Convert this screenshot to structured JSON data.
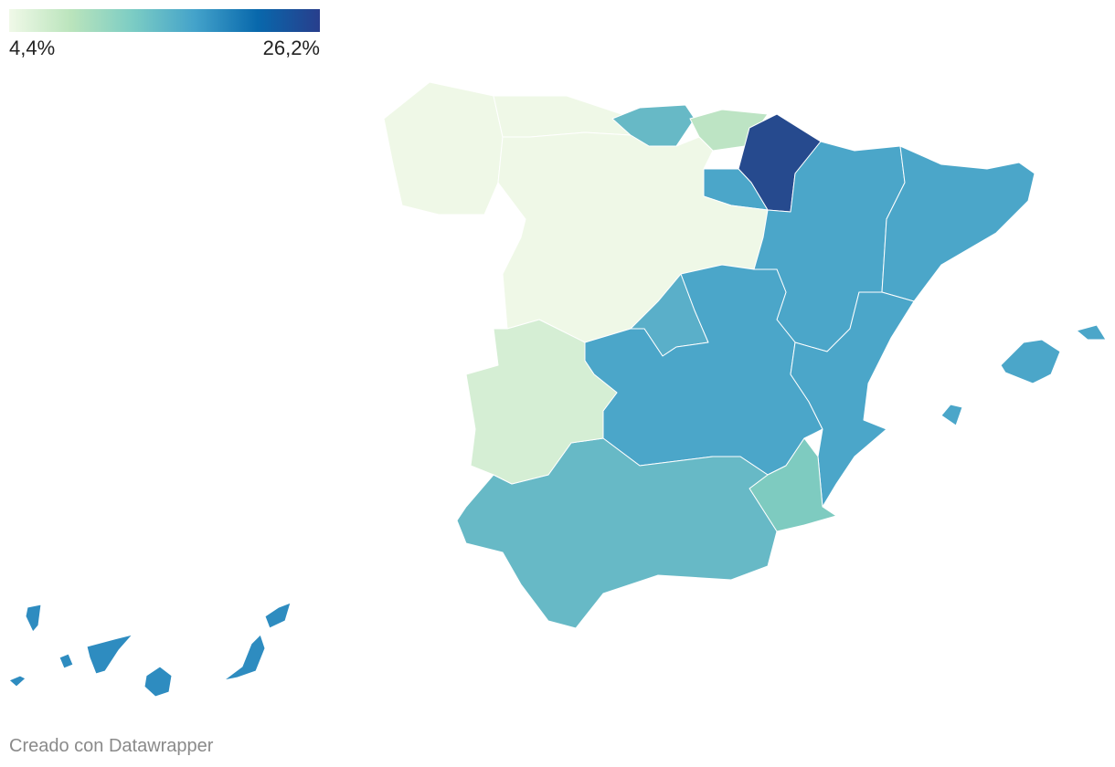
{
  "legend": {
    "min": {
      "value": 4.4,
      "label": "4,4%"
    },
    "max": {
      "value": 26.2,
      "label": "26,2%"
    },
    "colors": [
      "#f0f9e8",
      "#bae4bc",
      "#7bccc4",
      "#43a2ca",
      "#0868ac",
      "#283e8c"
    ]
  },
  "regions": [
    {
      "color": "#eff8e7"
    },
    {
      "color": "#eff8e7"
    },
    {
      "color": "#67b9c6"
    },
    {
      "color": "#bde4c4"
    },
    {
      "color": "#264a8e"
    },
    {
      "color": "#4ba6c9"
    },
    {
      "color": "#eff8e7"
    },
    {
      "color": "#4ba6c9"
    },
    {
      "color": "#4ba6c9"
    },
    {
      "color": "#5aafc9"
    },
    {
      "color": "#4ba6c9"
    },
    {
      "color": "#4ba6c9"
    },
    {
      "color": "#7ecbc0"
    },
    {
      "color": "#67b9c6"
    },
    {
      "color": "#d5eed4"
    },
    {
      "color": "#4ba6c9"
    },
    {
      "color": "#2e8cc0"
    }
  ],
  "credit": "Creado con Datawrapper"
}
